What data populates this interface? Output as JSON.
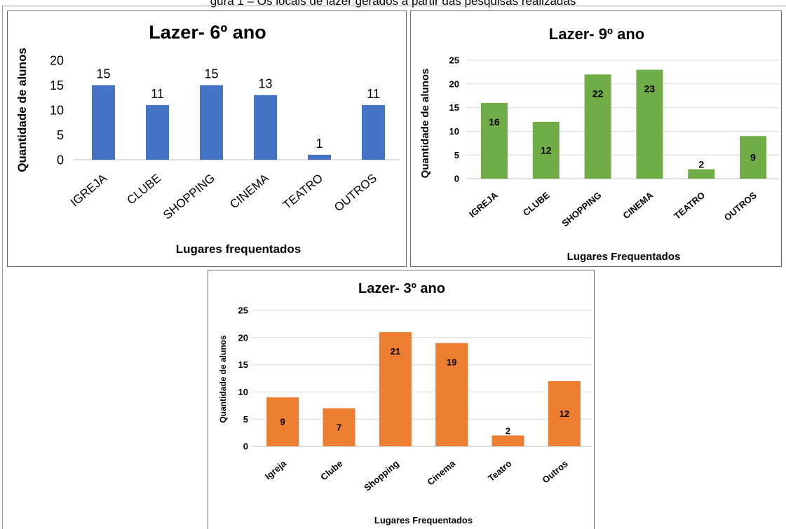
{
  "caption": "gura 1 – Os locais de lazer gerados a partir das pesquisas realizadas",
  "chart_data": [
    {
      "type": "bar",
      "title": "Lazer- 6º ano",
      "xlabel": "Lugares frequentados",
      "ylabel": "Quantidade de alunos",
      "categories": [
        "IGREJA",
        "CLUBE",
        "SHOPPING",
        "CINEMA",
        "TEATRO",
        "OUTROS"
      ],
      "values": [
        15,
        11,
        15,
        13,
        1,
        11
      ],
      "yticks": [
        0,
        5,
        10,
        15,
        20
      ],
      "ylim": [
        0,
        20
      ],
      "grid": false,
      "color": "#4472c4"
    },
    {
      "type": "bar",
      "title": "Lazer- 9º ano",
      "xlabel": "Lugares Frequentados",
      "ylabel": "Quantidade de alunos",
      "categories": [
        "IGREJA",
        "CLUBE",
        "SHOPPING",
        "CINEMA",
        "TEATRO",
        "OUTROS"
      ],
      "values": [
        16,
        12,
        22,
        23,
        2,
        9
      ],
      "yticks": [
        0,
        5,
        10,
        15,
        20,
        25
      ],
      "ylim": [
        0,
        25
      ],
      "grid": true,
      "color": "#70ad47"
    },
    {
      "type": "bar",
      "title": "Lazer- 3º ano",
      "xlabel": "Lugares Frequentados",
      "ylabel": "Quantidade de alunos",
      "categories": [
        "Igreja",
        "Clube",
        "Shopping",
        "Cinema",
        "Teatro",
        "Outros"
      ],
      "values": [
        9,
        7,
        21,
        19,
        2,
        12
      ],
      "yticks": [
        0,
        5,
        10,
        15,
        20,
        25
      ],
      "ylim": [
        0,
        25
      ],
      "grid": true,
      "color": "#ed7d31"
    }
  ]
}
